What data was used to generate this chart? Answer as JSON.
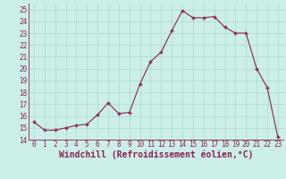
{
  "x": [
    0,
    1,
    2,
    3,
    4,
    5,
    6,
    7,
    8,
    9,
    10,
    11,
    12,
    13,
    14,
    15,
    16,
    17,
    18,
    19,
    20,
    21,
    22,
    23
  ],
  "y": [
    15.5,
    14.8,
    14.8,
    15.0,
    15.2,
    15.3,
    16.1,
    17.1,
    16.2,
    16.3,
    18.7,
    20.6,
    21.4,
    23.2,
    24.9,
    24.3,
    24.3,
    24.4,
    23.5,
    23.0,
    23.0,
    20.0,
    18.4,
    14.2
  ],
  "line_color": "#882255",
  "marker_color": "#882255",
  "bg_color": "#cceee8",
  "grid_color": "#aad8d4",
  "xlabel": "Windchill (Refroidissement éolien,°C)",
  "xlim": [
    -0.5,
    23.5
  ],
  "ylim": [
    14,
    25.5
  ],
  "yticks": [
    14,
    15,
    16,
    17,
    18,
    19,
    20,
    21,
    22,
    23,
    24,
    25
  ],
  "xticks": [
    0,
    1,
    2,
    3,
    4,
    5,
    6,
    7,
    8,
    9,
    10,
    11,
    12,
    13,
    14,
    15,
    16,
    17,
    18,
    19,
    20,
    21,
    22,
    23
  ],
  "tick_label_size": 5.5,
  "xlabel_size": 7.0
}
